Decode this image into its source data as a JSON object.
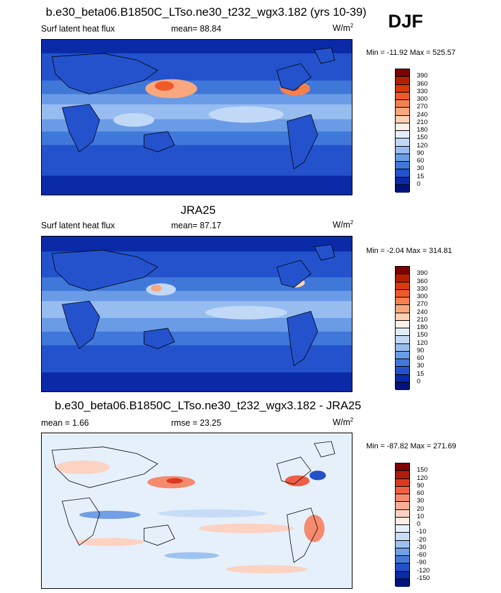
{
  "season": "DJF",
  "panels": [
    {
      "title": "b.e30_beta06.B1850C_LTso.ne30_t232_wgx3.182 (yrs 10-39)",
      "left_label": "Surf latent heat flux",
      "stat_label": "mean=  88.84",
      "units": "W/m",
      "units_sup": "2",
      "minmax": "Min = -11.92 Max = 525.57",
      "levels": [
        "390",
        "360",
        "330",
        "300",
        "270",
        "240",
        "210",
        "180",
        "150",
        "120",
        "90",
        "60",
        "30",
        "15",
        "0"
      ],
      "colors": [
        "#7f0000",
        "#b22000",
        "#d93a0c",
        "#ee5a28",
        "#f5804f",
        "#f9a77f",
        "#fcd0b4",
        "#fdf0e6",
        "#e3eefb",
        "#c2d8f7",
        "#97bcf0",
        "#6a9be6",
        "#4078da",
        "#2352cc",
        "#0a2aa8",
        "#00137a"
      ]
    },
    {
      "title": "JRA25",
      "left_label": "Surf latent heat flux",
      "stat_label": "mean=  87.17",
      "units": "W/m",
      "units_sup": "2",
      "minmax": "Min =  -2.04 Max = 314.81",
      "levels": [
        "390",
        "360",
        "330",
        "300",
        "270",
        "240",
        "210",
        "180",
        "150",
        "120",
        "90",
        "60",
        "30",
        "15",
        "0"
      ],
      "colors": [
        "#7f0000",
        "#b22000",
        "#d93a0c",
        "#ee5a28",
        "#f5804f",
        "#f9a77f",
        "#fcd0b4",
        "#fdf0e6",
        "#e3eefb",
        "#c2d8f7",
        "#97bcf0",
        "#6a9be6",
        "#4078da",
        "#2352cc",
        "#0a2aa8",
        "#00137a"
      ]
    },
    {
      "title": "b.e30_beta06.B1850C_LTso.ne30_t232_wgx3.182 - JRA25",
      "left_label": "mean =   1.66",
      "stat_label": "rmse =  23.25",
      "units": "W/m",
      "units_sup": "2",
      "minmax": "Min = -87.82 Max = 271.69",
      "levels": [
        "150",
        "120",
        "90",
        "60",
        "30",
        "20",
        "10",
        "0",
        "-10",
        "-20",
        "-30",
        "-60",
        "-90",
        "-120",
        "-150"
      ],
      "colors": [
        "#7f0000",
        "#b21a0a",
        "#d93a22",
        "#ee5f45",
        "#f58a6e",
        "#f9ad96",
        "#fcd2c2",
        "#fdeee6",
        "#e6f0fb",
        "#c7dcf7",
        "#9fc2f0",
        "#729fe5",
        "#4678d8",
        "#2350c8",
        "#0a2aa6",
        "#00137a"
      ]
    }
  ]
}
